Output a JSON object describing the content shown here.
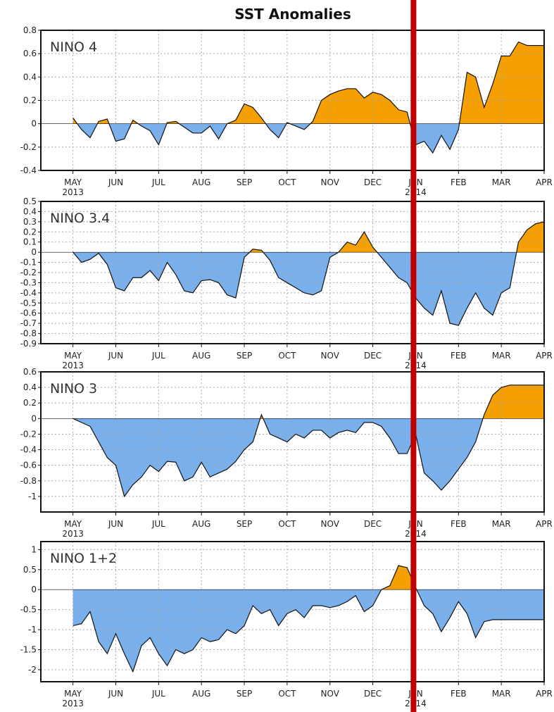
{
  "title": "SST Anomalies",
  "colors": {
    "positive": "#f5a000",
    "negative": "#79b0ec",
    "marker": "#c00000",
    "grid": "#aaaaaa"
  },
  "chart_data": [
    {
      "type": "area",
      "name": "NINO 4",
      "ylim": [
        -0.4,
        0.8
      ],
      "yticks": [
        -0.4,
        -0.2,
        0,
        0.2,
        0.4,
        0.6,
        0.8
      ],
      "ytick_labels": [
        "-0.4",
        "-0.2",
        "0",
        "0.2",
        "0.4",
        "0.6",
        "0.8"
      ],
      "x_months": [
        0,
        0.2,
        0.4,
        0.6,
        0.8,
        1,
        1.2,
        1.4,
        1.6,
        1.8,
        2,
        2.2,
        2.4,
        2.6,
        2.8,
        3,
        3.2,
        3.4,
        3.6,
        3.8,
        4,
        4.2,
        4.4,
        4.6,
        4.8,
        5,
        5.2,
        5.4,
        5.6,
        5.8,
        6,
        6.2,
        6.4,
        6.6,
        6.8,
        7,
        7.2,
        7.4,
        7.6,
        7.8,
        8,
        8.2,
        8.4,
        8.6,
        8.8,
        9,
        9.2,
        9.4,
        9.6,
        9.8,
        10,
        10.2,
        10.4,
        10.6,
        10.8,
        11,
        11.2,
        11.4,
        11.6,
        11.8
      ],
      "values": [
        0.05,
        -0.05,
        -0.12,
        0.02,
        0.04,
        -0.15,
        -0.13,
        0.03,
        -0.02,
        -0.06,
        -0.18,
        0.01,
        0.02,
        -0.03,
        -0.08,
        -0.08,
        -0.02,
        -0.13,
        0.0,
        0.03,
        0.17,
        0.14,
        0.05,
        -0.05,
        -0.12,
        0.01,
        -0.02,
        -0.05,
        0.02,
        0.2,
        0.25,
        0.28,
        0.3,
        0.3,
        0.22,
        0.27,
        0.25,
        0.2,
        0.12,
        0.1,
        -0.18,
        -0.15,
        -0.25,
        -0.1,
        -0.22,
        -0.05,
        0.44,
        0.4,
        0.14,
        0.34,
        0.58,
        0.58,
        0.7,
        0.67,
        0.67,
        0.67,
        0.67,
        0.67,
        0.67,
        0.67
      ]
    },
    {
      "type": "area",
      "name": "NINO 3.4",
      "ylim": [
        -0.9,
        0.5
      ],
      "yticks": [
        -0.9,
        -0.8,
        -0.7,
        -0.6,
        -0.5,
        -0.4,
        -0.3,
        -0.2,
        -0.1,
        0,
        0.1,
        0.2,
        0.3,
        0.4,
        0.5
      ],
      "ytick_labels": [
        "-0.9",
        "-0.8",
        "-0.7",
        "-0.6",
        "-0.5",
        "-0.4",
        "-0.3",
        "-0.2",
        "-0.1",
        "0",
        "0.1",
        "0.2",
        "0.3",
        "0.4",
        "0.5"
      ],
      "x_months": [
        0,
        0.2,
        0.4,
        0.6,
        0.8,
        1,
        1.2,
        1.4,
        1.6,
        1.8,
        2,
        2.2,
        2.4,
        2.6,
        2.8,
        3,
        3.2,
        3.4,
        3.6,
        3.8,
        4,
        4.2,
        4.4,
        4.6,
        4.8,
        5,
        5.2,
        5.4,
        5.6,
        5.8,
        6,
        6.2,
        6.4,
        6.6,
        6.8,
        7,
        7.2,
        7.4,
        7.6,
        7.8,
        8,
        8.2,
        8.4,
        8.6,
        8.8,
        9,
        9.2,
        9.4,
        9.6,
        9.8,
        10,
        10.2,
        10.4,
        10.6,
        10.8,
        11,
        11.2,
        11.4,
        11.6,
        11.8
      ],
      "values": [
        0.0,
        -0.1,
        -0.07,
        -0.01,
        -0.12,
        -0.35,
        -0.38,
        -0.25,
        -0.25,
        -0.18,
        -0.28,
        -0.1,
        -0.22,
        -0.38,
        -0.4,
        -0.28,
        -0.27,
        -0.3,
        -0.42,
        -0.45,
        -0.05,
        0.03,
        0.02,
        -0.08,
        -0.25,
        -0.3,
        -0.35,
        -0.4,
        -0.42,
        -0.38,
        -0.05,
        0.0,
        0.1,
        0.07,
        0.2,
        0.05,
        -0.05,
        -0.15,
        -0.25,
        -0.3,
        -0.45,
        -0.55,
        -0.62,
        -0.38,
        -0.7,
        -0.72,
        -0.55,
        -0.4,
        -0.55,
        -0.62,
        -0.4,
        -0.35,
        0.1,
        0.22,
        0.28,
        0.3,
        0.3,
        0.3,
        0.3,
        0.3
      ]
    },
    {
      "type": "area",
      "name": "NINO 3",
      "ylim": [
        -1.2,
        0.6
      ],
      "yticks": [
        -1,
        -0.8,
        -0.6,
        -0.4,
        -0.2,
        0,
        0.2,
        0.4,
        0.6
      ],
      "ytick_labels": [
        "-1",
        "-0.8",
        "-0.6",
        "-0.4",
        "-0.2",
        "0",
        "0.2",
        "0.4",
        "0.6"
      ],
      "x_months": [
        0,
        0.2,
        0.4,
        0.6,
        0.8,
        1,
        1.2,
        1.4,
        1.6,
        1.8,
        2,
        2.2,
        2.4,
        2.6,
        2.8,
        3,
        3.2,
        3.4,
        3.6,
        3.8,
        4,
        4.2,
        4.4,
        4.6,
        4.8,
        5,
        5.2,
        5.4,
        5.6,
        5.8,
        6,
        6.2,
        6.4,
        6.6,
        6.8,
        7,
        7.2,
        7.4,
        7.6,
        7.8,
        8,
        8.2,
        8.4,
        8.6,
        8.8,
        9,
        9.2,
        9.4,
        9.6,
        9.8,
        10,
        10.2,
        10.4,
        10.6,
        10.8,
        11,
        11.2,
        11.4,
        11.6,
        11.8
      ],
      "values": [
        0.0,
        -0.05,
        -0.1,
        -0.3,
        -0.5,
        -0.6,
        -1.0,
        -0.85,
        -0.75,
        -0.6,
        -0.68,
        -0.55,
        -0.56,
        -0.8,
        -0.75,
        -0.56,
        -0.75,
        -0.7,
        -0.65,
        -0.55,
        -0.4,
        -0.3,
        0.05,
        -0.2,
        -0.25,
        -0.3,
        -0.2,
        -0.25,
        -0.15,
        -0.15,
        -0.25,
        -0.18,
        -0.15,
        -0.18,
        -0.05,
        -0.05,
        -0.1,
        -0.25,
        -0.45,
        -0.45,
        -0.2,
        -0.7,
        -0.8,
        -0.92,
        -0.8,
        -0.65,
        -0.5,
        -0.3,
        0.05,
        0.3,
        0.4,
        0.43,
        0.43,
        0.43,
        0.43,
        0.43,
        0.43,
        0.43,
        0.43,
        0.43
      ]
    },
    {
      "type": "area",
      "name": "NINO 1+2",
      "ylim": [
        -2.3,
        1.2
      ],
      "yticks": [
        -2,
        -1.5,
        -1,
        -0.5,
        0,
        0.5,
        1
      ],
      "ytick_labels": [
        "-2",
        "-1.5",
        "-1",
        "-0.5",
        "0",
        "0.5",
        "1"
      ],
      "x_months": [
        0,
        0.2,
        0.4,
        0.6,
        0.8,
        1,
        1.2,
        1.4,
        1.6,
        1.8,
        2,
        2.2,
        2.4,
        2.6,
        2.8,
        3,
        3.2,
        3.4,
        3.6,
        3.8,
        4,
        4.2,
        4.4,
        4.6,
        4.8,
        5,
        5.2,
        5.4,
        5.6,
        5.8,
        6,
        6.2,
        6.4,
        6.6,
        6.8,
        7,
        7.2,
        7.4,
        7.6,
        7.8,
        8,
        8.2,
        8.4,
        8.6,
        8.8,
        9,
        9.2,
        9.4,
        9.6,
        9.8,
        10,
        10.2,
        10.4,
        10.6,
        10.8,
        11,
        11.2,
        11.4,
        11.6,
        11.8
      ],
      "values": [
        -0.9,
        -0.85,
        -0.55,
        -1.3,
        -1.6,
        -1.1,
        -1.6,
        -2.05,
        -1.4,
        -1.2,
        -1.6,
        -1.9,
        -1.5,
        -1.6,
        -1.5,
        -1.2,
        -1.3,
        -1.25,
        -1.0,
        -1.1,
        -0.9,
        -0.4,
        -0.6,
        -0.5,
        -0.9,
        -0.6,
        -0.5,
        -0.7,
        -0.4,
        -0.4,
        -0.45,
        -0.4,
        -0.3,
        -0.15,
        -0.55,
        -0.4,
        0.0,
        0.1,
        0.6,
        0.55,
        0.05,
        -0.4,
        -0.6,
        -1.05,
        -0.7,
        -0.3,
        -0.6,
        -1.2,
        -0.8,
        -0.75,
        -0.75,
        -0.75,
        -0.75,
        -0.75,
        -0.75,
        -0.75,
        -0.75,
        -0.75,
        -0.75,
        -0.75
      ]
    }
  ],
  "x_axis": {
    "month_labels": [
      "MAY",
      "JUN",
      "JUL",
      "AUG",
      "SEP",
      "OCT",
      "NOV",
      "DEC",
      "JAN",
      "FEB",
      "MAR",
      "APR"
    ],
    "year_labels": [
      {
        "at": 0,
        "text": "2013"
      },
      {
        "at": 8,
        "text": "2014"
      }
    ]
  },
  "marker": {
    "at_month": 7.95
  }
}
